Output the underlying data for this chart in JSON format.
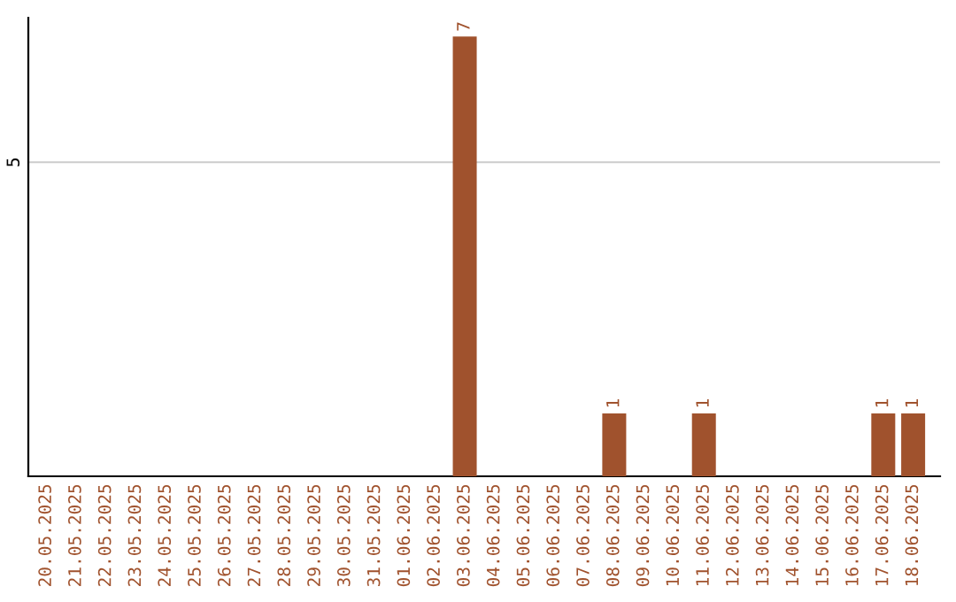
{
  "chart_data": {
    "type": "bar",
    "categories": [
      "20.05.2025",
      "21.05.2025",
      "22.05.2025",
      "23.05.2025",
      "24.05.2025",
      "25.05.2025",
      "26.05.2025",
      "27.05.2025",
      "28.05.2025",
      "29.05.2025",
      "30.05.2025",
      "31.05.2025",
      "01.06.2025",
      "02.06.2025",
      "03.06.2025",
      "04.06.2025",
      "05.06.2025",
      "06.06.2025",
      "07.06.2025",
      "08.06.2025",
      "09.06.2025",
      "10.06.2025",
      "11.06.2025",
      "12.06.2025",
      "13.06.2025",
      "14.06.2025",
      "15.06.2025",
      "16.06.2025",
      "17.06.2025",
      "18.06.2025"
    ],
    "values": [
      null,
      null,
      null,
      null,
      null,
      null,
      null,
      null,
      null,
      null,
      null,
      null,
      null,
      null,
      7,
      null,
      null,
      null,
      null,
      1,
      null,
      null,
      1,
      null,
      null,
      null,
      null,
      null,
      1,
      1
    ],
    "value_labels": [
      null,
      null,
      null,
      null,
      null,
      null,
      null,
      null,
      null,
      null,
      null,
      null,
      null,
      null,
      "7",
      null,
      null,
      null,
      null,
      "1",
      null,
      null,
      "1",
      null,
      null,
      null,
      null,
      null,
      "1",
      "1"
    ],
    "color": "#a0522d",
    "ref_lines": [
      {
        "axis": "y",
        "value": 5,
        "label": "5"
      }
    ]
  }
}
